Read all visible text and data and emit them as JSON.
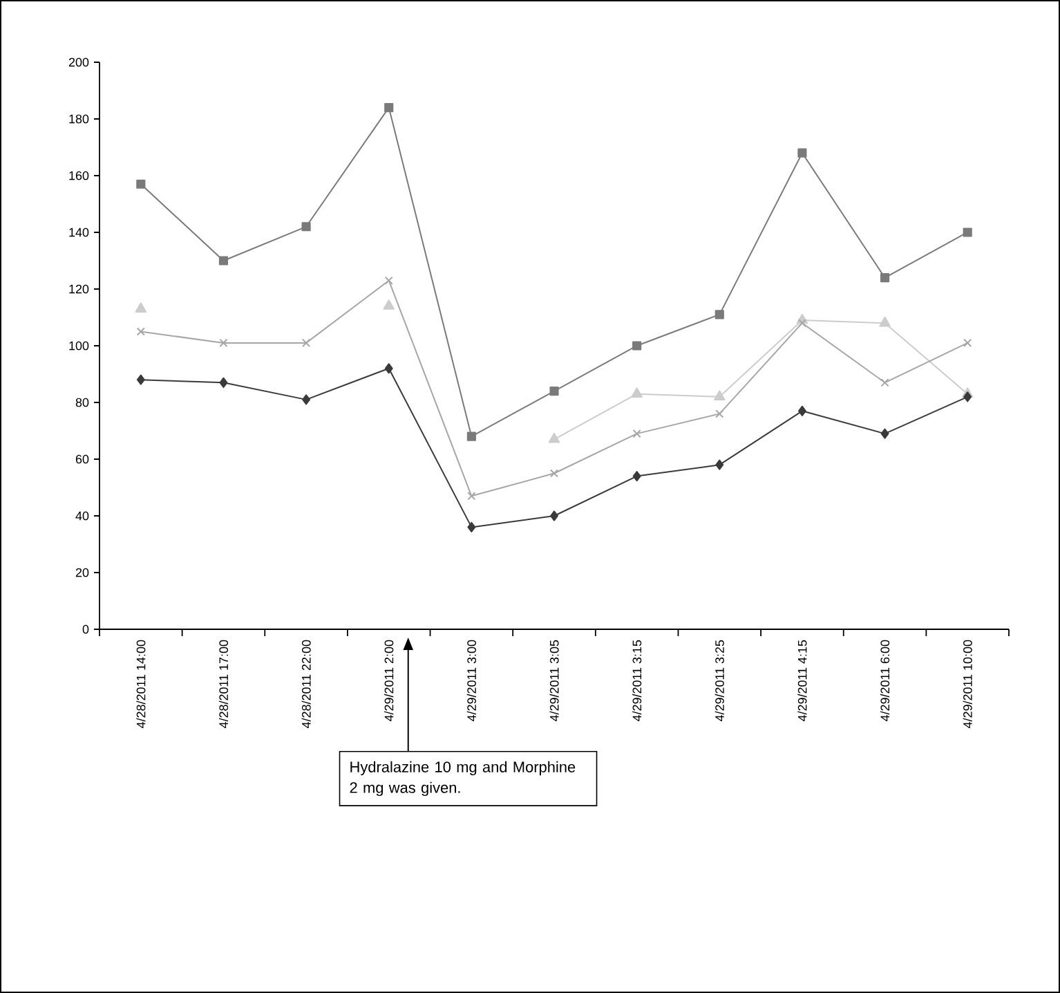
{
  "chart_data": {
    "type": "line",
    "categories": [
      "4/28/2011 14:00",
      "4/28/2011 17:00",
      "4/28/2011 22:00",
      "4/29/2011 2:00",
      "4/29/2011 3:00",
      "4/29/2011 3:05",
      "4/29/2011 3:15",
      "4/29/2011 3:25",
      "4/29/2011 4:15",
      "4/29/2011 6:00",
      "4/29/2011 10:00"
    ],
    "series": [
      {
        "color": "#7a7a7a",
        "marker": "square",
        "values": [
          157,
          130,
          142,
          184,
          68,
          84,
          100,
          111,
          168,
          124,
          140
        ]
      },
      {
        "color": "#cccccc",
        "marker": "triangle",
        "values": [
          113,
          null,
          null,
          114,
          null,
          67,
          83,
          82,
          109,
          108,
          83
        ]
      },
      {
        "color": "#a6a6a6",
        "marker": "cross",
        "values": [
          105,
          101,
          101,
          123,
          47,
          55,
          69,
          76,
          108,
          87,
          101
        ]
      },
      {
        "color": "#3a3a3a",
        "marker": "diamond",
        "values": [
          88,
          87,
          81,
          92,
          36,
          40,
          54,
          58,
          77,
          69,
          82
        ]
      }
    ],
    "ylim": [
      0,
      200
    ],
    "yticks": [
      0,
      20,
      40,
      60,
      80,
      100,
      120,
      140,
      160,
      180,
      200
    ],
    "line_style": "solid",
    "annotations": [
      "Hydralazine 10 mg and Morphine 2 mg was given."
    ]
  }
}
